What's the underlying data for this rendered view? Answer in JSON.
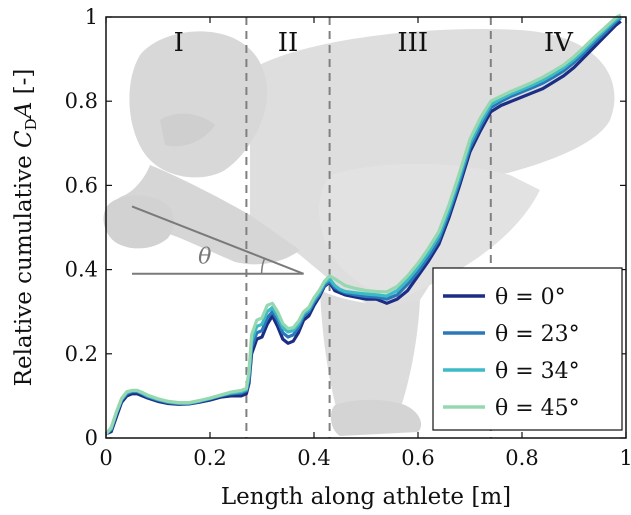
{
  "chart_data": {
    "type": "line",
    "xlabel": "Length along athlete [m]",
    "ylabel_prefix": "Relative cumulative",
    "ylabel_symbol": "C",
    "ylabel_subscript": "D",
    "ylabel_symbol2": "A",
    "ylabel_suffix": "[-]",
    "xlim": [
      0,
      1
    ],
    "ylim": [
      0,
      1
    ],
    "xticks": [
      "0",
      "0.2",
      "0.4",
      "0.6",
      "0.8",
      "1"
    ],
    "yticks": [
      "0",
      "0.2",
      "0.4",
      "0.6",
      "0.8",
      "1"
    ],
    "grid": false,
    "legend_position": "bottom-right",
    "regions": [
      {
        "label": "I",
        "x_center": 0.14
      },
      {
        "label": "II",
        "x_center": 0.35
      },
      {
        "label": "III",
        "x_center": 0.59
      },
      {
        "label": "IV",
        "x_center": 0.87
      }
    ],
    "region_boundaries": [
      0.27,
      0.43,
      0.74
    ],
    "angle_annotation": {
      "label": "θ",
      "line1": [
        [
          0.05,
          0.39
        ],
        [
          0.38,
          0.39
        ]
      ],
      "line2": [
        [
          0.05,
          0.55
        ],
        [
          0.38,
          0.39
        ]
      ]
    },
    "x": [
      0.0,
      0.01,
      0.02,
      0.03,
      0.04,
      0.05,
      0.06,
      0.07,
      0.08,
      0.1,
      0.12,
      0.14,
      0.16,
      0.18,
      0.2,
      0.22,
      0.24,
      0.26,
      0.27,
      0.275,
      0.28,
      0.29,
      0.3,
      0.31,
      0.32,
      0.33,
      0.34,
      0.35,
      0.36,
      0.37,
      0.38,
      0.39,
      0.4,
      0.41,
      0.42,
      0.43,
      0.44,
      0.45,
      0.46,
      0.48,
      0.5,
      0.52,
      0.54,
      0.56,
      0.58,
      0.6,
      0.62,
      0.64,
      0.66,
      0.68,
      0.7,
      0.72,
      0.74,
      0.76,
      0.78,
      0.8,
      0.82,
      0.84,
      0.86,
      0.88,
      0.9,
      0.92,
      0.94,
      0.96,
      0.98,
      0.99
    ],
    "series": [
      {
        "name": "θ = 0°",
        "color": "#1c2d83",
        "values": [
          0.01,
          0.015,
          0.05,
          0.085,
          0.1,
          0.105,
          0.105,
          0.1,
          0.095,
          0.087,
          0.082,
          0.08,
          0.081,
          0.085,
          0.09,
          0.097,
          0.1,
          0.1,
          0.105,
          0.13,
          0.2,
          0.235,
          0.24,
          0.27,
          0.29,
          0.265,
          0.235,
          0.225,
          0.23,
          0.25,
          0.28,
          0.29,
          0.315,
          0.335,
          0.36,
          0.37,
          0.35,
          0.345,
          0.34,
          0.335,
          0.33,
          0.33,
          0.32,
          0.33,
          0.35,
          0.385,
          0.42,
          0.46,
          0.525,
          0.6,
          0.68,
          0.73,
          0.775,
          0.79,
          0.8,
          0.81,
          0.82,
          0.83,
          0.845,
          0.86,
          0.88,
          0.905,
          0.93,
          0.955,
          0.98,
          0.99
        ]
      },
      {
        "name": "θ = 23°",
        "color": "#2a78b8",
        "values": [
          0.01,
          0.02,
          0.058,
          0.09,
          0.105,
          0.11,
          0.11,
          0.105,
          0.098,
          0.09,
          0.084,
          0.082,
          0.082,
          0.087,
          0.093,
          0.1,
          0.105,
          0.107,
          0.112,
          0.14,
          0.215,
          0.25,
          0.255,
          0.285,
          0.3,
          0.28,
          0.25,
          0.24,
          0.245,
          0.262,
          0.29,
          0.3,
          0.322,
          0.34,
          0.363,
          0.372,
          0.357,
          0.35,
          0.345,
          0.34,
          0.336,
          0.335,
          0.33,
          0.34,
          0.365,
          0.395,
          0.43,
          0.47,
          0.535,
          0.61,
          0.69,
          0.74,
          0.785,
          0.8,
          0.812,
          0.822,
          0.832,
          0.843,
          0.857,
          0.872,
          0.892,
          0.915,
          0.94,
          0.963,
          0.988,
          0.998
        ]
      },
      {
        "name": "θ = 34°",
        "color": "#3cbac6",
        "values": [
          0.01,
          0.022,
          0.06,
          0.092,
          0.108,
          0.112,
          0.112,
          0.106,
          0.1,
          0.092,
          0.086,
          0.083,
          0.083,
          0.088,
          0.094,
          0.101,
          0.107,
          0.11,
          0.115,
          0.15,
          0.23,
          0.265,
          0.27,
          0.3,
          0.31,
          0.29,
          0.262,
          0.252,
          0.255,
          0.27,
          0.295,
          0.305,
          0.328,
          0.345,
          0.368,
          0.378,
          0.362,
          0.353,
          0.348,
          0.345,
          0.342,
          0.34,
          0.337,
          0.35,
          0.375,
          0.405,
          0.44,
          0.48,
          0.545,
          0.62,
          0.7,
          0.75,
          0.792,
          0.806,
          0.818,
          0.828,
          0.838,
          0.85,
          0.864,
          0.879,
          0.899,
          0.922,
          0.947,
          0.97,
          0.993,
          1.0
        ]
      },
      {
        "name": "θ = 45°",
        "color": "#95d8b0",
        "values": [
          0.01,
          0.025,
          0.062,
          0.094,
          0.11,
          0.113,
          0.113,
          0.108,
          0.102,
          0.093,
          0.087,
          0.084,
          0.084,
          0.089,
          0.095,
          0.102,
          0.109,
          0.113,
          0.118,
          0.16,
          0.245,
          0.28,
          0.285,
          0.315,
          0.32,
          0.3,
          0.272,
          0.26,
          0.262,
          0.277,
          0.3,
          0.31,
          0.333,
          0.35,
          0.372,
          0.385,
          0.378,
          0.37,
          0.362,
          0.355,
          0.35,
          0.348,
          0.347,
          0.36,
          0.385,
          0.415,
          0.45,
          0.49,
          0.555,
          0.63,
          0.71,
          0.76,
          0.8,
          0.812,
          0.824,
          0.834,
          0.845,
          0.857,
          0.871,
          0.886,
          0.906,
          0.929,
          0.953,
          0.975,
          0.998,
          1.005
        ]
      }
    ]
  }
}
